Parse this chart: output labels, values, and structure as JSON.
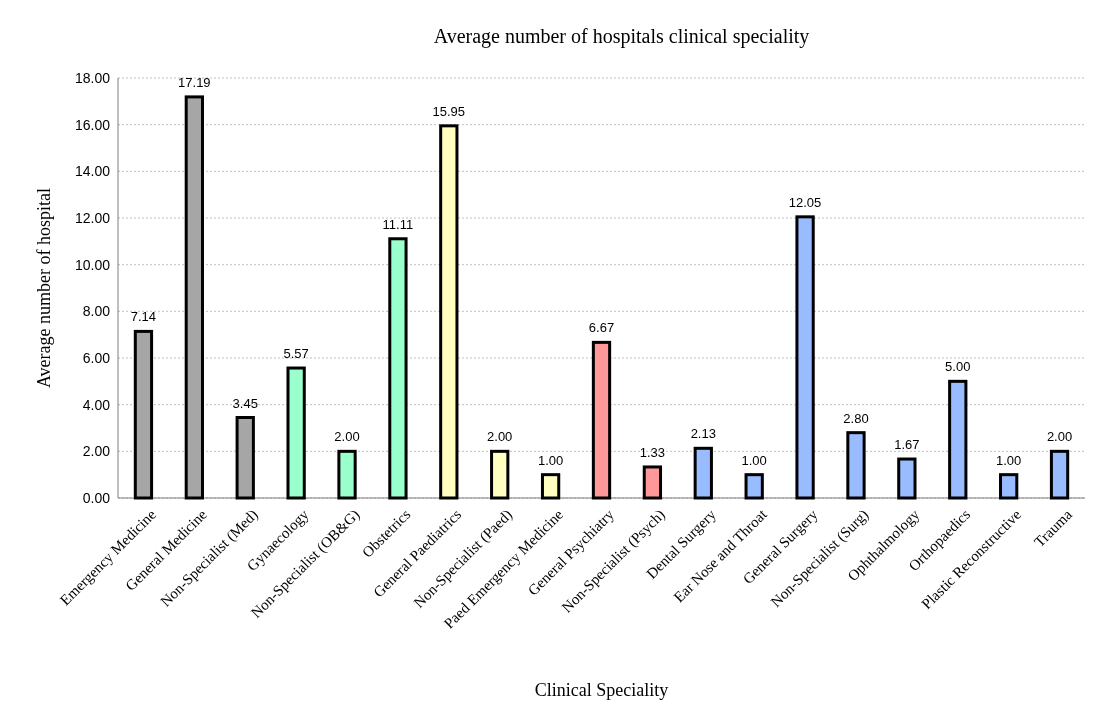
{
  "chart_data": {
    "type": "bar",
    "title": "Average number of hospitals clinical speciality",
    "xlabel": "Clinical Speciality",
    "ylabel": "Average number of hospital",
    "categories": [
      "Emergency Medicine",
      "General Medicine",
      "Non-Specialist (Med)",
      "Gynaecology",
      "Non-Specialist (OB&G)",
      "Obstetrics",
      "General Paediatrics",
      "Non-Specialist (Paed)",
      "Paed Emergency Medicine",
      "General Psychiatry",
      "Non-Specialist (Psych)",
      "Dental Surgery",
      "Ear Nose and Throat",
      "General Surgery",
      "Non-Specialist (Surg)",
      "Ophthalmology",
      "Orthopaedics",
      "Plastic Reconstructive",
      "Trauma"
    ],
    "values": [
      7.14,
      17.19,
      3.45,
      5.57,
      2,
      11.11,
      15.95,
      2,
      1,
      6.67,
      1.33,
      2.13,
      1,
      12.05,
      2.8,
      1.67,
      5,
      1,
      2
    ],
    "value_labels": [
      "7.14",
      "17.19",
      "3.45",
      "5.57",
      "2.00",
      "11.11",
      "15.95",
      "2.00",
      "1.00",
      "6.67",
      "1.33",
      "2.13",
      "1.00",
      "12.05",
      "2.80",
      "1.67",
      "5.00",
      "1.00",
      "2.00"
    ],
    "colors": [
      "#a6a6a6",
      "#a6a6a6",
      "#a6a6a6",
      "#99ffcc",
      "#99ffcc",
      "#99ffcc",
      "#ffffc0",
      "#ffffc0",
      "#ffffc0",
      "#ff9999",
      "#ff9999",
      "#99bbff",
      "#99bbff",
      "#99bbff",
      "#99bbff",
      "#99bbff",
      "#99bbff",
      "#99bbff",
      "#99bbff"
    ],
    "ylim": [
      0,
      18
    ],
    "yticks": [
      {
        "value": 0,
        "label": "0.00"
      },
      {
        "value": 2,
        "label": "2.00"
      },
      {
        "value": 4,
        "label": "4.00"
      },
      {
        "value": 6,
        "label": "6.00"
      },
      {
        "value": 8,
        "label": "8.00"
      },
      {
        "value": 10,
        "label": "10.00"
      },
      {
        "value": 12,
        "label": "12.00"
      },
      {
        "value": 14,
        "label": "14.00"
      },
      {
        "value": 16,
        "label": "16.00"
      },
      {
        "value": 18,
        "label": "18.00"
      }
    ],
    "grid": "y"
  }
}
